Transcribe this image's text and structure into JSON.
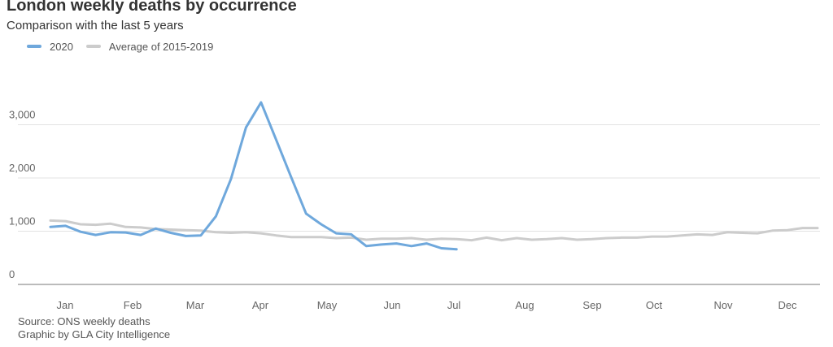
{
  "chart_data": {
    "type": "line",
    "title": "London weekly deaths by occurrence",
    "subtitle": "Comparison with the last 5 years",
    "xlabel": "",
    "ylabel": "",
    "ylim": [
      0,
      3400
    ],
    "y_ticks": [
      0,
      1000,
      2000,
      3000
    ],
    "y_tick_labels": [
      "0",
      "1,000",
      "2,000",
      "3,000"
    ],
    "month_labels": [
      "Jan",
      "Feb",
      "Mar",
      "Apr",
      "May",
      "Jun",
      "Jul",
      "Aug",
      "Sep",
      "Oct",
      "Nov",
      "Dec"
    ],
    "x_unit": "week",
    "grid": true,
    "legend_position": "top-left",
    "series": [
      {
        "name": "2020",
        "color": "#6fa8dc",
        "values": [
          1080,
          1100,
          990,
          930,
          980,
          975,
          930,
          1050,
          970,
          910,
          920,
          1280,
          1980,
          2950,
          3420,
          2720,
          2020,
          1330,
          1130,
          960,
          940,
          720,
          750,
          770,
          720,
          770,
          680,
          660
        ]
      },
      {
        "name": "Average of 2015-2019",
        "color": "#cccccc",
        "values": [
          1200,
          1190,
          1130,
          1120,
          1140,
          1080,
          1070,
          1040,
          1030,
          1020,
          1010,
          980,
          970,
          980,
          960,
          920,
          890,
          890,
          890,
          870,
          880,
          840,
          860,
          860,
          870,
          840,
          860,
          850,
          830,
          880,
          830,
          870,
          840,
          850,
          870,
          840,
          850,
          870,
          880,
          880,
          900,
          900,
          920,
          940,
          930,
          980,
          970,
          960,
          1010,
          1020,
          1060,
          1060
        ]
      }
    ]
  },
  "footer": {
    "source": "Source: ONS weekly deaths",
    "credit": "Graphic by GLA City Intelligence"
  }
}
